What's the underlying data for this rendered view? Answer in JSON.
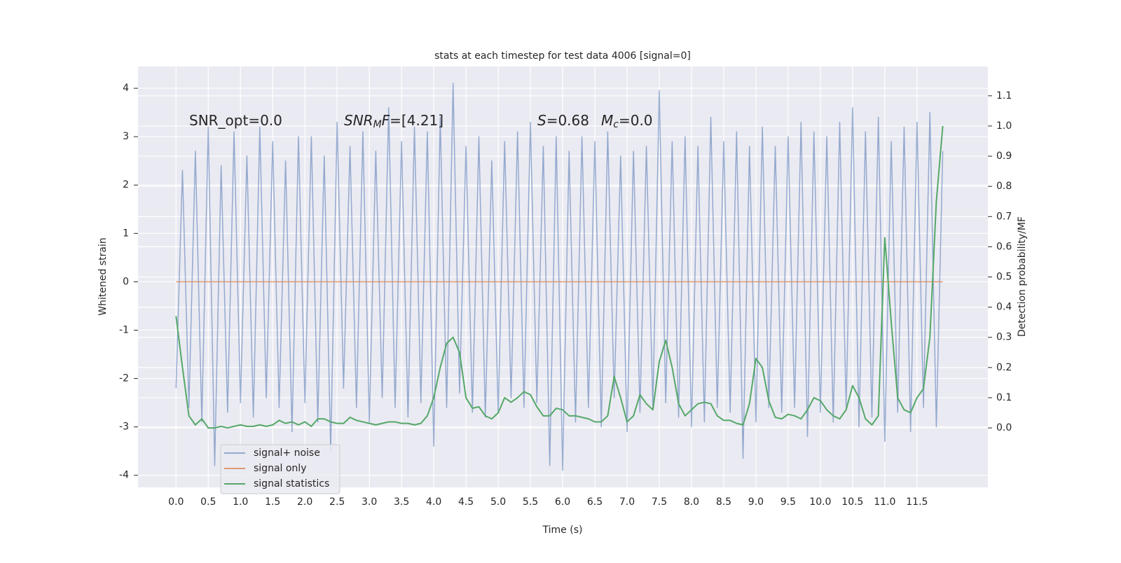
{
  "chart_data": {
    "type": "line",
    "title": "stats at each timestep for test data 4006 [signal=0]",
    "x_label": "Time (s)",
    "y_label": "Whitened strain",
    "y2_label": "Detection probability/MF",
    "x": [
      0,
      0.1,
      0.2,
      0.3,
      0.4,
      0.5,
      0.6,
      0.7,
      0.8,
      0.9,
      1,
      1.1,
      1.2,
      1.3,
      1.4,
      1.5,
      1.6,
      1.7,
      1.8,
      1.9,
      2,
      2.1,
      2.2,
      2.3,
      2.4,
      2.5,
      2.6,
      2.7,
      2.8,
      2.9,
      3,
      3.1,
      3.2,
      3.3,
      3.4,
      3.5,
      3.6,
      3.7,
      3.8,
      3.9,
      4,
      4.1,
      4.2,
      4.3,
      4.4,
      4.5,
      4.6,
      4.7,
      4.8,
      4.9,
      5,
      5.1,
      5.2,
      5.3,
      5.4,
      5.5,
      5.6,
      5.7,
      5.8,
      5.9,
      6,
      6.1,
      6.2,
      6.3,
      6.4,
      6.5,
      6.6,
      6.7,
      6.8,
      6.9,
      7,
      7.1,
      7.2,
      7.3,
      7.4,
      7.5,
      7.6,
      7.7,
      7.8,
      7.9,
      8,
      8.1,
      8.2,
      8.3,
      8.4,
      8.5,
      8.6,
      8.7,
      8.8,
      8.9,
      9,
      9.1,
      9.2,
      9.3,
      9.4,
      9.5,
      9.6,
      9.7,
      9.8,
      9.9,
      10,
      10.1,
      10.2,
      10.3,
      10.4,
      10.5,
      10.6,
      10.7,
      10.8,
      10.9,
      11,
      11.1,
      11.2,
      11.3,
      11.4,
      11.5,
      11.6,
      11.7,
      11.8,
      11.9
    ],
    "series": [
      {
        "name": "signal+ noise",
        "color": "#4c72b0",
        "opacity": 0.55,
        "values": [
          -2.2,
          2.3,
          -2.6,
          2.7,
          -2.9,
          3.2,
          -3.8,
          2.4,
          -2.7,
          3.1,
          -2.5,
          2.6,
          -2.8,
          3.2,
          -2.4,
          2.9,
          -2.6,
          2.5,
          -3.1,
          3.0,
          -2.5,
          3.0,
          -2.9,
          2.6,
          -3.5,
          3.3,
          -2.2,
          2.8,
          -2.6,
          3.1,
          -2.9,
          2.7,
          -2.4,
          3.6,
          -2.6,
          2.9,
          -2.8,
          3.2,
          -2.5,
          3.1,
          -3.4,
          3.4,
          -2.6,
          4.1,
          -2.3,
          2.8,
          -2.7,
          3.0,
          -2.8,
          2.5,
          -2.7,
          2.9,
          -2.4,
          3.1,
          -2.6,
          3.3,
          -2.5,
          2.8,
          -3.8,
          3.0,
          -3.9,
          2.7,
          -2.9,
          3.0,
          -2.6,
          2.9,
          -3.0,
          3.1,
          -2.4,
          2.6,
          -3.1,
          2.7,
          -2.7,
          2.8,
          -2.6,
          3.95,
          -2.5,
          2.9,
          -2.8,
          3.0,
          -3.0,
          2.8,
          -2.9,
          3.4,
          -2.6,
          2.9,
          -2.7,
          3.1,
          -3.65,
          2.8,
          -2.9,
          3.2,
          -2.6,
          2.8,
          -2.7,
          3.0,
          -2.6,
          3.3,
          -3.2,
          3.1,
          -2.7,
          3.0,
          -2.9,
          3.3,
          -2.6,
          3.6,
          -3.0,
          3.1,
          -2.8,
          3.4,
          -3.3,
          2.9,
          -2.7,
          3.2,
          -3.1,
          3.3,
          -2.6,
          3.5,
          -3.0,
          2.7
        ]
      },
      {
        "name": "signal only",
        "color": "#dd8452",
        "opacity": 0.8,
        "values": [
          0,
          0,
          0,
          0,
          0,
          0,
          0,
          0,
          0,
          0,
          0,
          0,
          0,
          0,
          0,
          0,
          0,
          0,
          0,
          0,
          0,
          0,
          0,
          0,
          0,
          0,
          0,
          0,
          0,
          0,
          0,
          0,
          0,
          0,
          0,
          0,
          0,
          0,
          0,
          0,
          0,
          0,
          0,
          0,
          0,
          0,
          0,
          0,
          0,
          0,
          0,
          0,
          0,
          0,
          0,
          0,
          0,
          0,
          0,
          0,
          0,
          0,
          0,
          0,
          0,
          0,
          0,
          0,
          0,
          0,
          0,
          0,
          0,
          0,
          0,
          0,
          0,
          0,
          0,
          0,
          0,
          0,
          0,
          0,
          0,
          0,
          0,
          0,
          0,
          0,
          0,
          0,
          0,
          0,
          0,
          0,
          0,
          0,
          0,
          0,
          0,
          0,
          0,
          0,
          0,
          0,
          0,
          0,
          0,
          0,
          0,
          0,
          0,
          0,
          0,
          0,
          0,
          0,
          0,
          0
        ]
      },
      {
        "name": "signal statistics",
        "color": "#55a868",
        "opacity": 1,
        "axis": "y2",
        "values": [
          0.37,
          0.2,
          0.04,
          0.01,
          0.03,
          0.0,
          0.0,
          0.005,
          0.0,
          0.005,
          0.01,
          0.005,
          0.005,
          0.01,
          0.005,
          0.01,
          0.025,
          0.015,
          0.02,
          0.01,
          0.02,
          0.005,
          0.03,
          0.03,
          0.02,
          0.015,
          0.015,
          0.035,
          0.025,
          0.02,
          0.015,
          0.01,
          0.015,
          0.02,
          0.02,
          0.015,
          0.015,
          0.01,
          0.015,
          0.04,
          0.1,
          0.2,
          0.28,
          0.3,
          0.25,
          0.1,
          0.065,
          0.07,
          0.04,
          0.03,
          0.05,
          0.1,
          0.085,
          0.1,
          0.12,
          0.11,
          0.07,
          0.04,
          0.04,
          0.065,
          0.06,
          0.04,
          0.04,
          0.035,
          0.03,
          0.02,
          0.02,
          0.04,
          0.17,
          0.1,
          0.02,
          0.04,
          0.11,
          0.08,
          0.06,
          0.22,
          0.29,
          0.2,
          0.08,
          0.04,
          0.06,
          0.08,
          0.085,
          0.08,
          0.04,
          0.025,
          0.025,
          0.015,
          0.01,
          0.08,
          0.23,
          0.2,
          0.09,
          0.035,
          0.03,
          0.045,
          0.04,
          0.03,
          0.06,
          0.1,
          0.09,
          0.06,
          0.04,
          0.03,
          0.06,
          0.14,
          0.1,
          0.03,
          0.01,
          0.04,
          0.63,
          0.35,
          0.1,
          0.06,
          0.05,
          0.1,
          0.13,
          0.3,
          0.75,
          1.0
        ]
      }
    ],
    "xlim": [
      -0.59,
      12.6
    ],
    "xticks": [
      {
        "value": 0,
        "label": "0.0"
      },
      0.5,
      {
        "value": 1,
        "label": "1.0"
      },
      1.5,
      {
        "value": 2,
        "label": "2.0"
      },
      2.5,
      {
        "value": 3,
        "label": "3.0"
      },
      3.5,
      {
        "value": 4,
        "label": "4.0"
      },
      4.5,
      {
        "value": 5,
        "label": "5.0"
      },
      5.5,
      {
        "value": 6,
        "label": "6.0"
      },
      6.5,
      {
        "value": 7,
        "label": "7.0"
      },
      7.5,
      {
        "value": 8,
        "label": "8.0"
      },
      8.5,
      {
        "value": 9,
        "label": "9.0"
      },
      9.5,
      {
        "value": 10,
        "label": "10.0"
      },
      10.5,
      {
        "value": 11,
        "label": "11.0"
      },
      11.5
    ],
    "ylim": [
      -4.25,
      4.45
    ],
    "yticks": [
      -4,
      -3,
      -2,
      -1,
      0,
      1,
      2,
      3,
      4
    ],
    "y2lim": [
      -0.197,
      1.197
    ],
    "y2ticks": [
      {
        "value": 0,
        "label": "0.0"
      },
      0.1,
      0.2,
      0.3,
      0.4,
      0.5,
      0.6,
      0.7,
      0.8,
      0.9,
      {
        "value": 1,
        "label": "1.0"
      },
      1.1
    ],
    "grid": true,
    "legend": "lower left",
    "annotations": [
      [
        {
          "text": "SNR_opt=0.0"
        }
      ],
      [
        {
          "text": "SNR",
          "italic": true
        },
        {
          "text": "M",
          "italic": true,
          "sub": true
        },
        {
          "text": "F",
          "italic": true
        },
        {
          "text": "=[4.21]"
        }
      ],
      [
        {
          "text": "S",
          "italic": true
        },
        {
          "text": "=0.68"
        }
      ],
      [
        {
          "text": "M",
          "italic": true
        },
        {
          "text": "c",
          "italic": true,
          "sub": true
        },
        {
          "text": "=0.0"
        }
      ]
    ]
  }
}
